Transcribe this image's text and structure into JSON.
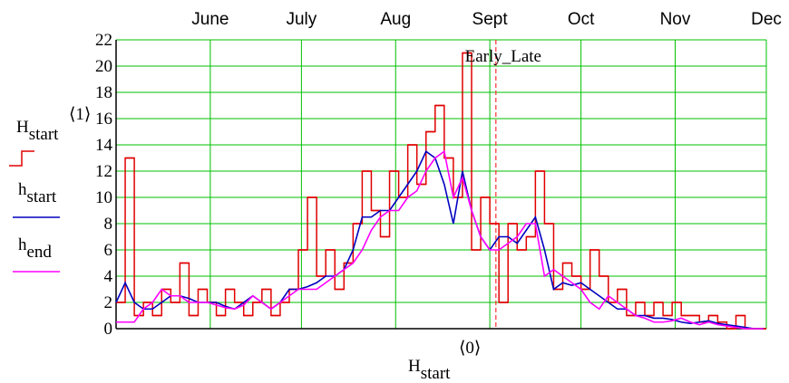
{
  "chart_data": {
    "type": "step-line",
    "xlim": [
      121,
      335
    ],
    "xticks": [
      {
        "value": 152,
        "label": "June"
      },
      {
        "value": 182,
        "label": "July"
      },
      {
        "value": 213,
        "label": "Aug"
      },
      {
        "value": 244,
        "label": "Sept"
      },
      {
        "value": 274,
        "label": "Oct"
      },
      {
        "value": 305,
        "label": "Nov"
      },
      {
        "value": 335,
        "label": "Dec"
      }
    ],
    "ylim": [
      0,
      22
    ],
    "yticks": [
      0,
      2,
      4,
      6,
      8,
      10,
      12,
      14,
      16,
      18,
      20,
      22
    ],
    "grid": true,
    "grid_color": "#00c000",
    "y_label": {
      "main": "H",
      "sub": "start",
      "sup": "⟨1⟩"
    },
    "x_label": {
      "main": "H",
      "sub": "start",
      "sup": "⟨0⟩"
    },
    "marker": {
      "label": "Early_Late",
      "x": 246,
      "color": "#ff3030"
    },
    "x": [
      121,
      124,
      127,
      130,
      133,
      136,
      139,
      142,
      145,
      148,
      151,
      154,
      157,
      160,
      163,
      166,
      169,
      172,
      175,
      178,
      181,
      184,
      187,
      190,
      193,
      196,
      199,
      202,
      205,
      208,
      211,
      214,
      217,
      220,
      223,
      226,
      229,
      232,
      235,
      238,
      241,
      244,
      247,
      250,
      253,
      256,
      259,
      262,
      265,
      268,
      271,
      274,
      277,
      280,
      283,
      286,
      289,
      292,
      295,
      298,
      301,
      304,
      307,
      310,
      313,
      316,
      319,
      322,
      325,
      328,
      331,
      334
    ],
    "series": [
      {
        "name": "H",
        "subscript": "start",
        "color": "#e00000",
        "style": "step",
        "values": [
          2,
          13,
          1,
          2,
          1,
          3,
          2,
          5,
          1,
          3,
          2,
          1,
          3,
          2,
          1,
          2,
          3,
          1,
          2,
          3,
          6,
          10,
          4,
          6,
          3,
          5,
          8,
          12,
          9,
          7,
          12,
          10,
          14,
          11,
          15,
          17,
          13,
          10,
          21,
          6,
          10,
          8,
          2,
          8,
          6,
          7,
          12,
          8,
          3,
          5,
          4,
          3,
          6,
          4,
          2,
          3,
          1,
          2,
          1,
          2,
          1,
          2,
          1,
          1,
          0.5,
          1,
          0.5,
          0,
          1,
          0,
          0,
          0
        ]
      },
      {
        "name": "h",
        "subscript": "start",
        "color": "#0000c0",
        "style": "line",
        "values": [
          2,
          3.5,
          2,
          1.5,
          1.5,
          2,
          2.5,
          2.5,
          2.3,
          2,
          2,
          2,
          1.7,
          1.5,
          2,
          2.5,
          2,
          1.5,
          2,
          3,
          3,
          3.2,
          3.5,
          4,
          4,
          4.5,
          6,
          8.5,
          8.5,
          9,
          9,
          10,
          11,
          12,
          13.5,
          13,
          11,
          8,
          12,
          9,
          7,
          6,
          7,
          7,
          6.5,
          7.5,
          8.5,
          6,
          3,
          3.5,
          3.3,
          3.5,
          3,
          2.5,
          2,
          1.5,
          1.5,
          1,
          1,
          0.8,
          0.8,
          0.7,
          0.5,
          0.4,
          0.5,
          0.6,
          0.4,
          0.3,
          0.2,
          0.1,
          0,
          0
        ]
      },
      {
        "name": "h",
        "subscript": "end",
        "color": "#ff00ff",
        "style": "line",
        "values": [
          0.5,
          0.5,
          0.5,
          1.5,
          2,
          3,
          2.5,
          2.5,
          2,
          2,
          2,
          1.8,
          1.6,
          1.5,
          1.8,
          2.5,
          2,
          1.5,
          2,
          2.5,
          3,
          3,
          3,
          3.5,
          4,
          4.5,
          5,
          6,
          7.5,
          8.5,
          9,
          9,
          10,
          10.5,
          12,
          13,
          13.5,
          10,
          11.5,
          9,
          7,
          6,
          6,
          6.5,
          7,
          8,
          8,
          4,
          4.5,
          4,
          3.5,
          3,
          2,
          1.5,
          2.5,
          2,
          1.5,
          1,
          0.8,
          0.5,
          0.5,
          0.6,
          0.8,
          0.5,
          0.3,
          0.5,
          0.3,
          0.2,
          0.1,
          0,
          0,
          0
        ]
      }
    ]
  }
}
